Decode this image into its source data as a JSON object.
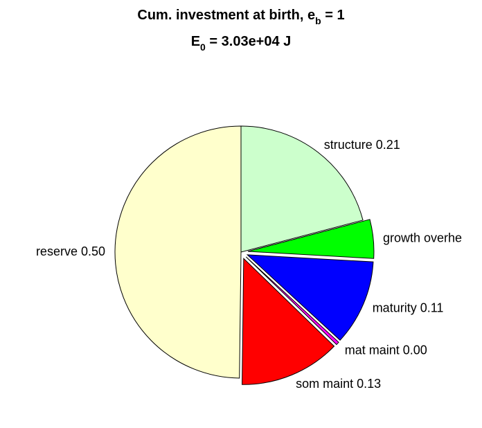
{
  "chart_data": {
    "type": "pie",
    "title_line1": {
      "text": "Cum. investment at birth, e",
      "sub": "b",
      "suffix": " = 1"
    },
    "title_line2": {
      "text": "E",
      "sub": "0",
      "suffix": " = 3.03e+04 J"
    },
    "slices": [
      {
        "name": "structure",
        "label": "structure 0.21",
        "value": 0.21,
        "color": "#CCFFCC",
        "exploded": false
      },
      {
        "name": "growth overhead",
        "label": "growth overhe",
        "value": 0.05,
        "color": "#00FF00",
        "exploded": true
      },
      {
        "name": "maturity",
        "label": "maturity 0.11",
        "value": 0.11,
        "color": "#0000FF",
        "exploded": true
      },
      {
        "name": "mat maint",
        "label": "mat maint 0.00",
        "value": 0.004,
        "color": "#FF00FF",
        "exploded": true
      },
      {
        "name": "som maint",
        "label": "som maint 0.13",
        "value": 0.13,
        "color": "#FF0000",
        "exploded": true
      },
      {
        "name": "reserve",
        "label": "reserve 0.50",
        "value": 0.5,
        "color": "#FFFFCC",
        "exploded": false
      }
    ]
  }
}
